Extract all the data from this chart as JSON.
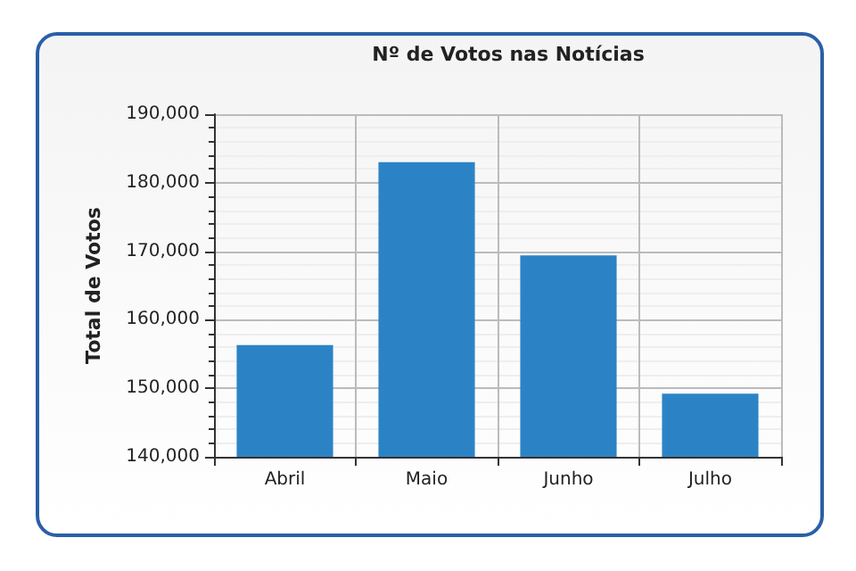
{
  "chart_data": {
    "type": "bar",
    "title": "Nº de Votos nas Notícias",
    "ylabel": "Total de Votos",
    "categories": [
      "Abril",
      "Maio",
      "Junho",
      "Julho"
    ],
    "values": [
      156300,
      183000,
      169400,
      149200
    ],
    "color": "#2b83c6",
    "ylim": [
      140000,
      190000
    ],
    "yticks": [
      {
        "value": 140000,
        "label": "140,000"
      },
      {
        "value": 150000,
        "label": "150,000"
      },
      {
        "value": 160000,
        "label": "160,000"
      },
      {
        "value": 170000,
        "label": "170,000"
      },
      {
        "value": 180000,
        "label": "180,000"
      },
      {
        "value": 190000,
        "label": "190,000"
      }
    ],
    "grid": true
  }
}
